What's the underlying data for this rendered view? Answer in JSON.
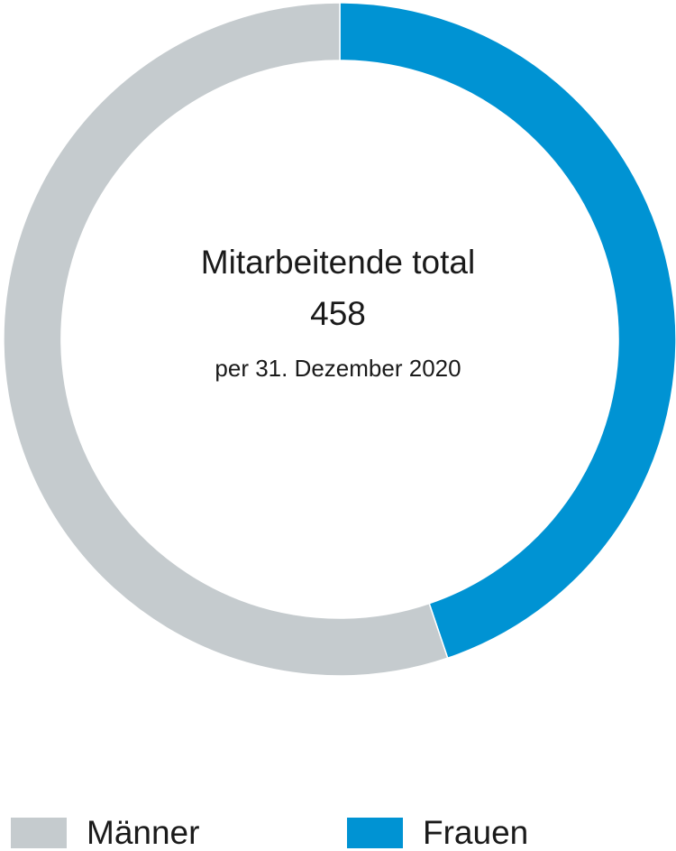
{
  "chart_data": {
    "type": "pie",
    "style": "donut",
    "center": {
      "title": "Mitarbeitende total",
      "total": "458",
      "date": "per 31. Dezember 2020"
    },
    "slices": [
      {
        "name": "Frauen",
        "value": 0.448,
        "color": "#0093d3"
      },
      {
        "name": "Männer",
        "value": 0.552,
        "color": "#c5cbce"
      }
    ],
    "start_angle_deg": 0,
    "direction": "clockwise",
    "legend_position": "bottom"
  }
}
